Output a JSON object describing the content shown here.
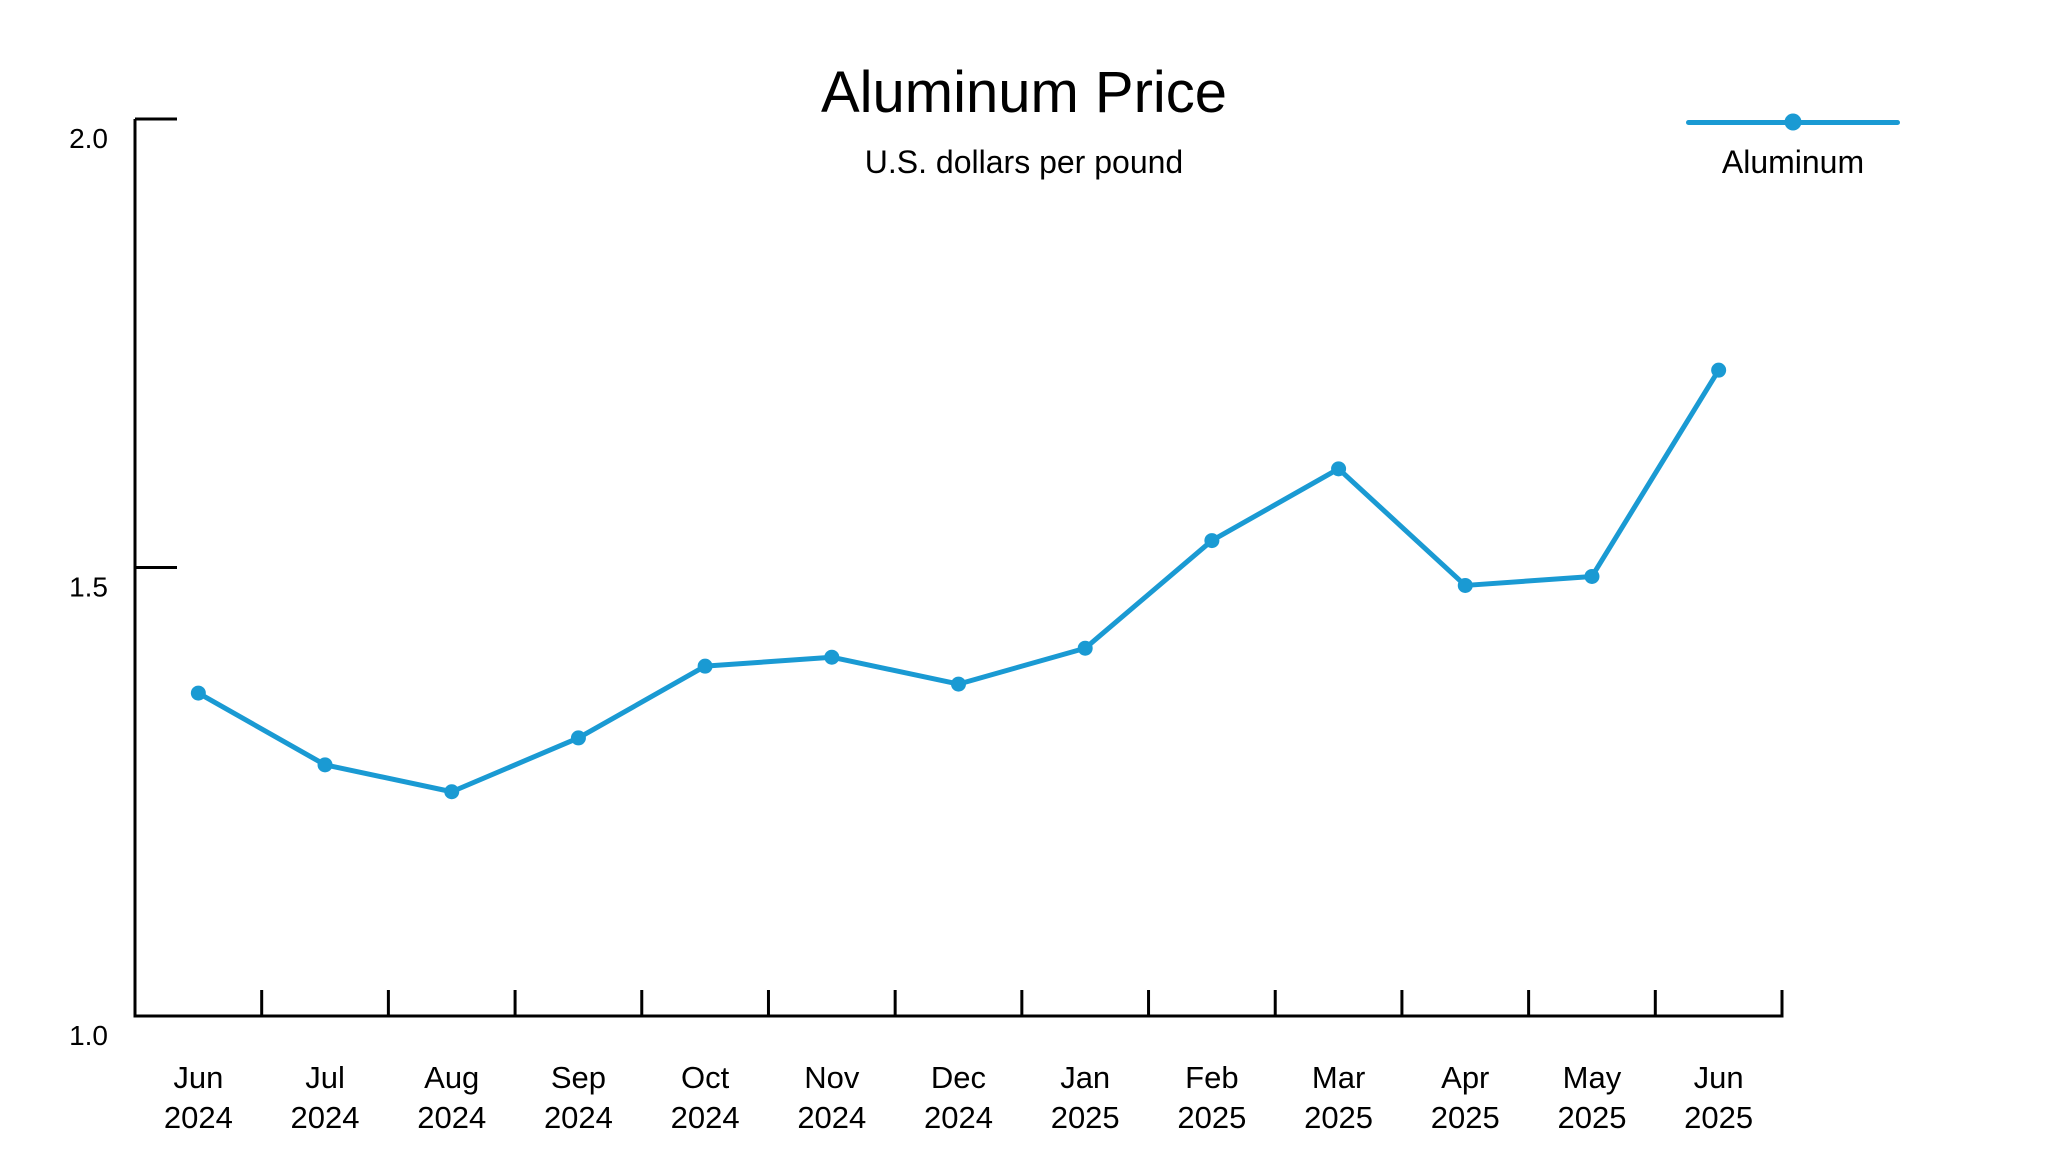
{
  "chart_data": {
    "type": "line",
    "title": "Aluminum Price",
    "subtitle": "U.S. dollars per pound",
    "categories": [
      "Jun 2024",
      "Jul 2024",
      "Aug 2024",
      "Sep 2024",
      "Oct 2024",
      "Nov 2024",
      "Dec 2024",
      "Jan 2025",
      "Feb 2025",
      "Mar 2025",
      "Apr 2025",
      "May 2025",
      "Jun 2025"
    ],
    "series": [
      {
        "name": "Aluminum",
        "color": "#1a9ad3",
        "values": [
          1.36,
          1.28,
          1.25,
          1.31,
          1.39,
          1.4,
          1.37,
          1.41,
          1.53,
          1.61,
          1.48,
          1.49,
          1.72
        ]
      }
    ],
    "xlabel": "",
    "ylabel": "",
    "ylim": [
      1.0,
      2.0
    ],
    "yticks": [
      {
        "value": 1.0,
        "label": "1.0"
      },
      {
        "value": 1.5,
        "label": "1.5"
      },
      {
        "value": 2.0,
        "label": "2.0"
      }
    ],
    "grid": false,
    "legend_position": "top-right",
    "axis_color": "#000000",
    "text_color": "#000000",
    "background": "#ffffff"
  }
}
